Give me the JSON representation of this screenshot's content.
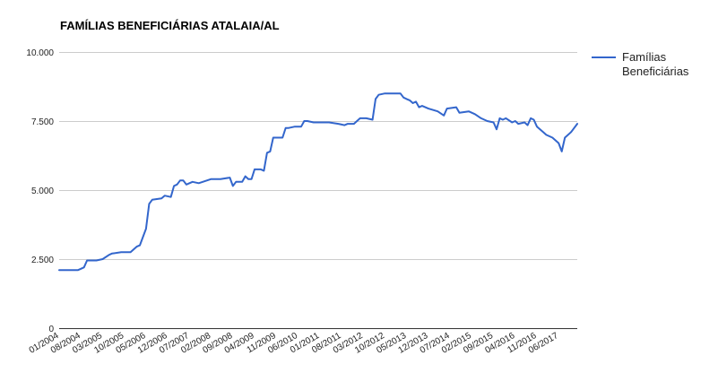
{
  "chart_data": {
    "type": "line",
    "title": "FAMÍLIAS BENEFICIÁRIAS ATALAIA/AL",
    "xlabel": "",
    "ylabel": "",
    "ylim": [
      0,
      10000
    ],
    "yticks": [
      {
        "value": 0,
        "label": "0"
      },
      {
        "value": 2500,
        "label": "2.500"
      },
      {
        "value": 5000,
        "label": "5.000"
      },
      {
        "value": 7500,
        "label": "7.500"
      },
      {
        "value": 10000,
        "label": "10.000"
      }
    ],
    "xticks": [
      "01/2004",
      "08/2004",
      "03/2005",
      "10/2005",
      "05/2006",
      "12/2006",
      "07/2007",
      "02/2008",
      "09/2008",
      "04/2009",
      "11/2009",
      "06/2010",
      "01/2011",
      "08/2011",
      "03/2012",
      "10/2012",
      "05/2013",
      "12/2013",
      "07/2014",
      "02/2015",
      "09/2015",
      "04/2016",
      "11/2016",
      "06/2017"
    ],
    "grid": true,
    "legend_position": "right",
    "series": [
      {
        "name": "Famílias Beneficiárias",
        "color": "#3366cc",
        "points": [
          [
            "01/2004",
            2100
          ],
          [
            "04/2004",
            2100
          ],
          [
            "07/2004",
            2100
          ],
          [
            "08/2004",
            2150
          ],
          [
            "09/2004",
            2200
          ],
          [
            "10/2004",
            2450
          ],
          [
            "01/2005",
            2450
          ],
          [
            "03/2005",
            2500
          ],
          [
            "05/2005",
            2650
          ],
          [
            "06/2005",
            2700
          ],
          [
            "09/2005",
            2750
          ],
          [
            "12/2005",
            2750
          ],
          [
            "02/2006",
            2950
          ],
          [
            "03/2006",
            3000
          ],
          [
            "05/2006",
            3600
          ],
          [
            "06/2006",
            4500
          ],
          [
            "07/2006",
            4650
          ],
          [
            "10/2006",
            4700
          ],
          [
            "11/2006",
            4800
          ],
          [
            "01/2007",
            4750
          ],
          [
            "02/2007",
            5150
          ],
          [
            "03/2007",
            5200
          ],
          [
            "04/2007",
            5350
          ],
          [
            "05/2007",
            5350
          ],
          [
            "06/2007",
            5200
          ],
          [
            "08/2007",
            5300
          ],
          [
            "10/2007",
            5250
          ],
          [
            "02/2008",
            5400
          ],
          [
            "05/2008",
            5400
          ],
          [
            "08/2008",
            5450
          ],
          [
            "09/2008",
            5150
          ],
          [
            "10/2008",
            5300
          ],
          [
            "12/2008",
            5300
          ],
          [
            "01/2009",
            5500
          ],
          [
            "02/2009",
            5400
          ],
          [
            "03/2009",
            5400
          ],
          [
            "04/2009",
            5750
          ],
          [
            "06/2009",
            5750
          ],
          [
            "07/2009",
            5700
          ],
          [
            "08/2009",
            6350
          ],
          [
            "09/2009",
            6400
          ],
          [
            "10/2009",
            6900
          ],
          [
            "01/2010",
            6900
          ],
          [
            "02/2010",
            7250
          ],
          [
            "03/2010",
            7250
          ],
          [
            "05/2010",
            7300
          ],
          [
            "07/2010",
            7300
          ],
          [
            "08/2010",
            7500
          ],
          [
            "09/2010",
            7500
          ],
          [
            "11/2010",
            7450
          ],
          [
            "01/2011",
            7450
          ],
          [
            "04/2011",
            7450
          ],
          [
            "07/2011",
            7400
          ],
          [
            "09/2011",
            7350
          ],
          [
            "10/2011",
            7400
          ],
          [
            "12/2011",
            7400
          ],
          [
            "02/2012",
            7600
          ],
          [
            "04/2012",
            7600
          ],
          [
            "06/2012",
            7550
          ],
          [
            "07/2012",
            8300
          ],
          [
            "08/2012",
            8450
          ],
          [
            "10/2012",
            8500
          ],
          [
            "01/2013",
            8500
          ],
          [
            "03/2013",
            8500
          ],
          [
            "04/2013",
            8350
          ],
          [
            "05/2013",
            8300
          ],
          [
            "06/2013",
            8250
          ],
          [
            "07/2013",
            8150
          ],
          [
            "08/2013",
            8200
          ],
          [
            "09/2013",
            8000
          ],
          [
            "10/2013",
            8050
          ],
          [
            "12/2013",
            7950
          ],
          [
            "03/2014",
            7850
          ],
          [
            "05/2014",
            7700
          ],
          [
            "06/2014",
            7950
          ],
          [
            "09/2014",
            8000
          ],
          [
            "10/2014",
            7800
          ],
          [
            "01/2015",
            7850
          ],
          [
            "03/2015",
            7750
          ],
          [
            "05/2015",
            7600
          ],
          [
            "07/2015",
            7500
          ],
          [
            "09/2015",
            7450
          ],
          [
            "10/2015",
            7200
          ],
          [
            "11/2015",
            7600
          ],
          [
            "12/2015",
            7550
          ],
          [
            "01/2016",
            7600
          ],
          [
            "03/2016",
            7450
          ],
          [
            "04/2016",
            7500
          ],
          [
            "05/2016",
            7400
          ],
          [
            "07/2016",
            7450
          ],
          [
            "08/2016",
            7350
          ],
          [
            "09/2016",
            7600
          ],
          [
            "10/2016",
            7550
          ],
          [
            "11/2016",
            7300
          ],
          [
            "01/2017",
            7100
          ],
          [
            "02/2017",
            7000
          ],
          [
            "04/2017",
            6900
          ],
          [
            "06/2017",
            6700
          ],
          [
            "07/2017",
            6400
          ],
          [
            "08/2017",
            6900
          ],
          [
            "10/2017",
            7100
          ],
          [
            "12/2017",
            7400
          ]
        ]
      }
    ]
  }
}
